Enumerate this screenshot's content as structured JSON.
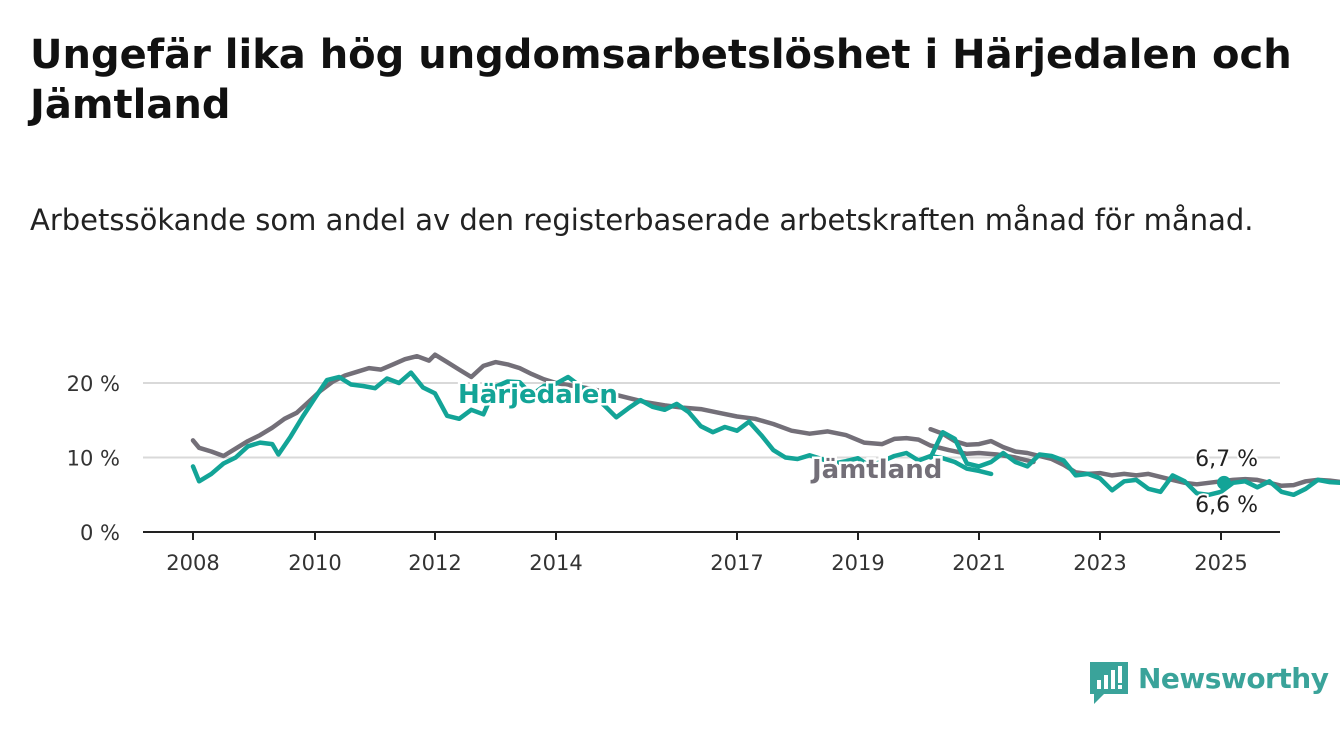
{
  "brand": {
    "name": "Newsworthy",
    "color": "#3aa39a"
  },
  "chart_data": {
    "type": "line",
    "title": "Ungefär lika hög ungdomsarbetslöshet i Härjedalen och Jämtland",
    "subtitle": "Arbetssökande som andel av den registerbaserade arbetskraften månad för månad.",
    "xlabel": "",
    "ylabel": "",
    "ylim": [
      0,
      25
    ],
    "xlim": [
      2007.9,
      2026.0
    ],
    "grid": true,
    "y_ticks": [
      0,
      10,
      20
    ],
    "y_tick_labels": [
      "0 %",
      "10 %",
      "20 %"
    ],
    "x_ticks": [
      2008,
      2010,
      2012,
      2014,
      2017,
      2019,
      2021,
      2023,
      2025
    ],
    "x_tick_labels": [
      "2008",
      "2010",
      "2012",
      "2014",
      "2017",
      "2019",
      "2021",
      "2023",
      "2025"
    ],
    "series": [
      {
        "name": "Jämtland",
        "color": "#736f78",
        "end_label": "6,7 %",
        "segments": [
          [
            [
              2008.0,
              12.3
            ],
            [
              2008.1,
              11.3
            ],
            [
              2008.3,
              10.8
            ],
            [
              2008.5,
              10.2
            ],
            [
              2008.7,
              11.2
            ],
            [
              2008.9,
              12.2
            ],
            [
              2009.1,
              13.0
            ],
            [
              2009.3,
              14.0
            ],
            [
              2009.5,
              15.2
            ],
            [
              2009.7,
              16.0
            ],
            [
              2009.9,
              17.5
            ],
            [
              2010.1,
              19.0
            ],
            [
              2010.3,
              20.2
            ],
            [
              2010.5,
              21.0
            ],
            [
              2010.7,
              21.5
            ],
            [
              2010.9,
              22.0
            ],
            [
              2011.1,
              21.8
            ],
            [
              2011.3,
              22.5
            ],
            [
              2011.5,
              23.2
            ],
            [
              2011.7,
              23.6
            ],
            [
              2011.9,
              23.0
            ],
            [
              2012.0,
              23.8
            ],
            [
              2012.2,
              22.8
            ],
            [
              2012.4,
              21.8
            ],
            [
              2012.6,
              20.8
            ],
            [
              2012.8,
              22.3
            ],
            [
              2013.0,
              22.8
            ],
            [
              2013.2,
              22.5
            ],
            [
              2013.4,
              22.0
            ],
            [
              2013.6,
              21.2
            ],
            [
              2013.8,
              20.5
            ],
            [
              2014.0,
              20.0
            ],
            [
              2014.3,
              19.6
            ],
            [
              2014.6,
              19.2
            ],
            [
              2014.9,
              18.6
            ],
            [
              2015.2,
              18.0
            ],
            [
              2015.5,
              17.4
            ],
            [
              2015.8,
              17.0
            ],
            [
              2016.1,
              16.7
            ],
            [
              2016.4,
              16.5
            ],
            [
              2016.7,
              16.0
            ],
            [
              2017.0,
              15.5
            ],
            [
              2017.3,
              15.2
            ],
            [
              2017.6,
              14.5
            ],
            [
              2017.9,
              13.6
            ],
            [
              2018.2,
              13.2
            ],
            [
              2018.5,
              13.5
            ],
            [
              2018.8,
              13.0
            ],
            [
              2019.1,
              12.0
            ],
            [
              2019.4,
              11.8
            ],
            [
              2019.6,
              12.5
            ],
            [
              2019.8,
              12.6
            ],
            [
              2020.0,
              12.4
            ],
            [
              2020.2,
              11.6
            ],
            [
              2020.5,
              11.0
            ],
            [
              2020.8,
              10.5
            ],
            [
              2021.0,
              10.6
            ],
            [
              2021.3,
              10.4
            ],
            [
              2021.6,
              10.0
            ],
            [
              2021.9,
              9.4
            ]
          ],
          [
            [
              2020.2,
              13.8
            ],
            [
              2020.4,
              13.2
            ],
            [
              2020.6,
              12.2
            ],
            [
              2020.8,
              11.7
            ],
            [
              2021.0,
              11.8
            ],
            [
              2021.2,
              12.2
            ],
            [
              2021.4,
              11.4
            ],
            [
              2021.6,
              10.8
            ],
            [
              2021.8,
              10.6
            ],
            [
              2022.0,
              10.2
            ],
            [
              2022.2,
              9.8
            ],
            [
              2022.4,
              9.0
            ],
            [
              2022.6,
              8.0
            ],
            [
              2022.8,
              7.8
            ],
            [
              2023.0,
              7.9
            ],
            [
              2023.2,
              7.6
            ],
            [
              2023.4,
              7.8
            ],
            [
              2023.6,
              7.6
            ],
            [
              2023.8,
              7.8
            ],
            [
              2024.0,
              7.4
            ],
            [
              2024.2,
              7.0
            ],
            [
              2024.4,
              6.6
            ],
            [
              2024.6,
              6.4
            ],
            [
              2024.8,
              6.6
            ],
            [
              2025.0,
              6.8
            ],
            [
              2025.2,
              7.0
            ],
            [
              2025.4,
              7.1
            ],
            [
              2025.6,
              7.0
            ],
            [
              2025.8,
              6.6
            ],
            [
              2026.0,
              6.2
            ],
            [
              2026.2,
              6.3
            ],
            [
              2026.4,
              6.8
            ],
            [
              2026.6,
              7.0
            ],
            [
              2026.8,
              6.9
            ],
            [
              2027.0,
              6.7
            ]
          ]
        ]
      },
      {
        "name": "Härjedalen",
        "color": "#13a497",
        "end_label": "6,6 %",
        "segments": [
          [
            [
              2008.0,
              8.8
            ],
            [
              2008.1,
              6.8
            ],
            [
              2008.3,
              7.8
            ],
            [
              2008.5,
              9.2
            ],
            [
              2008.7,
              10.0
            ],
            [
              2008.9,
              11.5
            ],
            [
              2009.1,
              12.0
            ],
            [
              2009.3,
              11.8
            ],
            [
              2009.4,
              10.4
            ],
            [
              2009.6,
              12.8
            ],
            [
              2009.8,
              15.5
            ],
            [
              2010.0,
              18.0
            ],
            [
              2010.2,
              20.4
            ],
            [
              2010.4,
              20.8
            ],
            [
              2010.6,
              19.8
            ],
            [
              2010.8,
              19.6
            ],
            [
              2011.0,
              19.3
            ],
            [
              2011.2,
              20.6
            ],
            [
              2011.4,
              20.0
            ],
            [
              2011.6,
              21.4
            ],
            [
              2011.8,
              19.4
            ],
            [
              2012.0,
              18.6
            ],
            [
              2012.2,
              15.6
            ],
            [
              2012.4,
              15.2
            ],
            [
              2012.6,
              16.4
            ],
            [
              2012.8,
              15.8
            ],
            [
              2013.0,
              19.5
            ],
            [
              2013.2,
              20.2
            ],
            [
              2013.4,
              20.1
            ],
            [
              2013.6,
              18.4
            ],
            [
              2013.8,
              19.6
            ],
            [
              2014.0,
              19.9
            ],
            [
              2014.2,
              20.8
            ],
            [
              2014.4,
              19.6
            ],
            [
              2014.6,
              18.3
            ],
            [
              2014.8,
              17.0
            ],
            [
              2015.0,
              15.4
            ],
            [
              2015.2,
              16.6
            ],
            [
              2015.4,
              17.7
            ],
            [
              2015.6,
              16.8
            ],
            [
              2015.8,
              16.4
            ],
            [
              2016.0,
              17.2
            ],
            [
              2016.2,
              16.1
            ],
            [
              2016.4,
              14.2
            ],
            [
              2016.6,
              13.4
            ],
            [
              2016.8,
              14.1
            ],
            [
              2017.0,
              13.6
            ],
            [
              2017.2,
              14.8
            ],
            [
              2017.4,
              13.0
            ],
            [
              2017.6,
              11.0
            ],
            [
              2017.8,
              10.0
            ],
            [
              2018.0,
              9.8
            ],
            [
              2018.2,
              10.3
            ],
            [
              2018.4,
              9.8
            ],
            [
              2018.6,
              9.2
            ],
            [
              2018.8,
              9.5
            ],
            [
              2019.0,
              9.9
            ],
            [
              2019.2,
              8.8
            ],
            [
              2019.4,
              9.5
            ],
            [
              2019.6,
              10.2
            ],
            [
              2019.8,
              10.6
            ],
            [
              2020.0,
              9.6
            ],
            [
              2020.2,
              10.2
            ],
            [
              2020.4,
              9.9
            ],
            [
              2020.6,
              9.4
            ],
            [
              2020.8,
              8.5
            ],
            [
              2021.0,
              8.2
            ],
            [
              2021.2,
              7.8
            ]
          ],
          [
            [
              2020.2,
              10.0
            ],
            [
              2020.4,
              13.4
            ],
            [
              2020.6,
              12.5
            ],
            [
              2020.8,
              9.2
            ],
            [
              2021.0,
              8.8
            ],
            [
              2021.2,
              9.4
            ],
            [
              2021.4,
              10.6
            ],
            [
              2021.6,
              9.4
            ],
            [
              2021.8,
              8.8
            ],
            [
              2022.0,
              10.4
            ],
            [
              2022.2,
              10.2
            ],
            [
              2022.4,
              9.6
            ],
            [
              2022.6,
              7.6
            ],
            [
              2022.8,
              7.8
            ],
            [
              2023.0,
              7.2
            ],
            [
              2023.2,
              5.6
            ],
            [
              2023.4,
              6.8
            ],
            [
              2023.6,
              7.0
            ],
            [
              2023.8,
              5.8
            ],
            [
              2024.0,
              5.4
            ],
            [
              2024.2,
              7.6
            ],
            [
              2024.4,
              6.8
            ],
            [
              2024.6,
              5.2
            ],
            [
              2024.8,
              5.0
            ],
            [
              2025.0,
              5.4
            ],
            [
              2025.2,
              6.6
            ],
            [
              2025.4,
              6.8
            ],
            [
              2025.6,
              6.0
            ],
            [
              2025.8,
              6.8
            ],
            [
              2026.0,
              5.4
            ],
            [
              2026.2,
              5.0
            ],
            [
              2026.4,
              5.8
            ],
            [
              2026.6,
              7.0
            ],
            [
              2026.8,
              6.7
            ],
            [
              2027.0,
              6.6
            ]
          ]
        ]
      }
    ]
  }
}
